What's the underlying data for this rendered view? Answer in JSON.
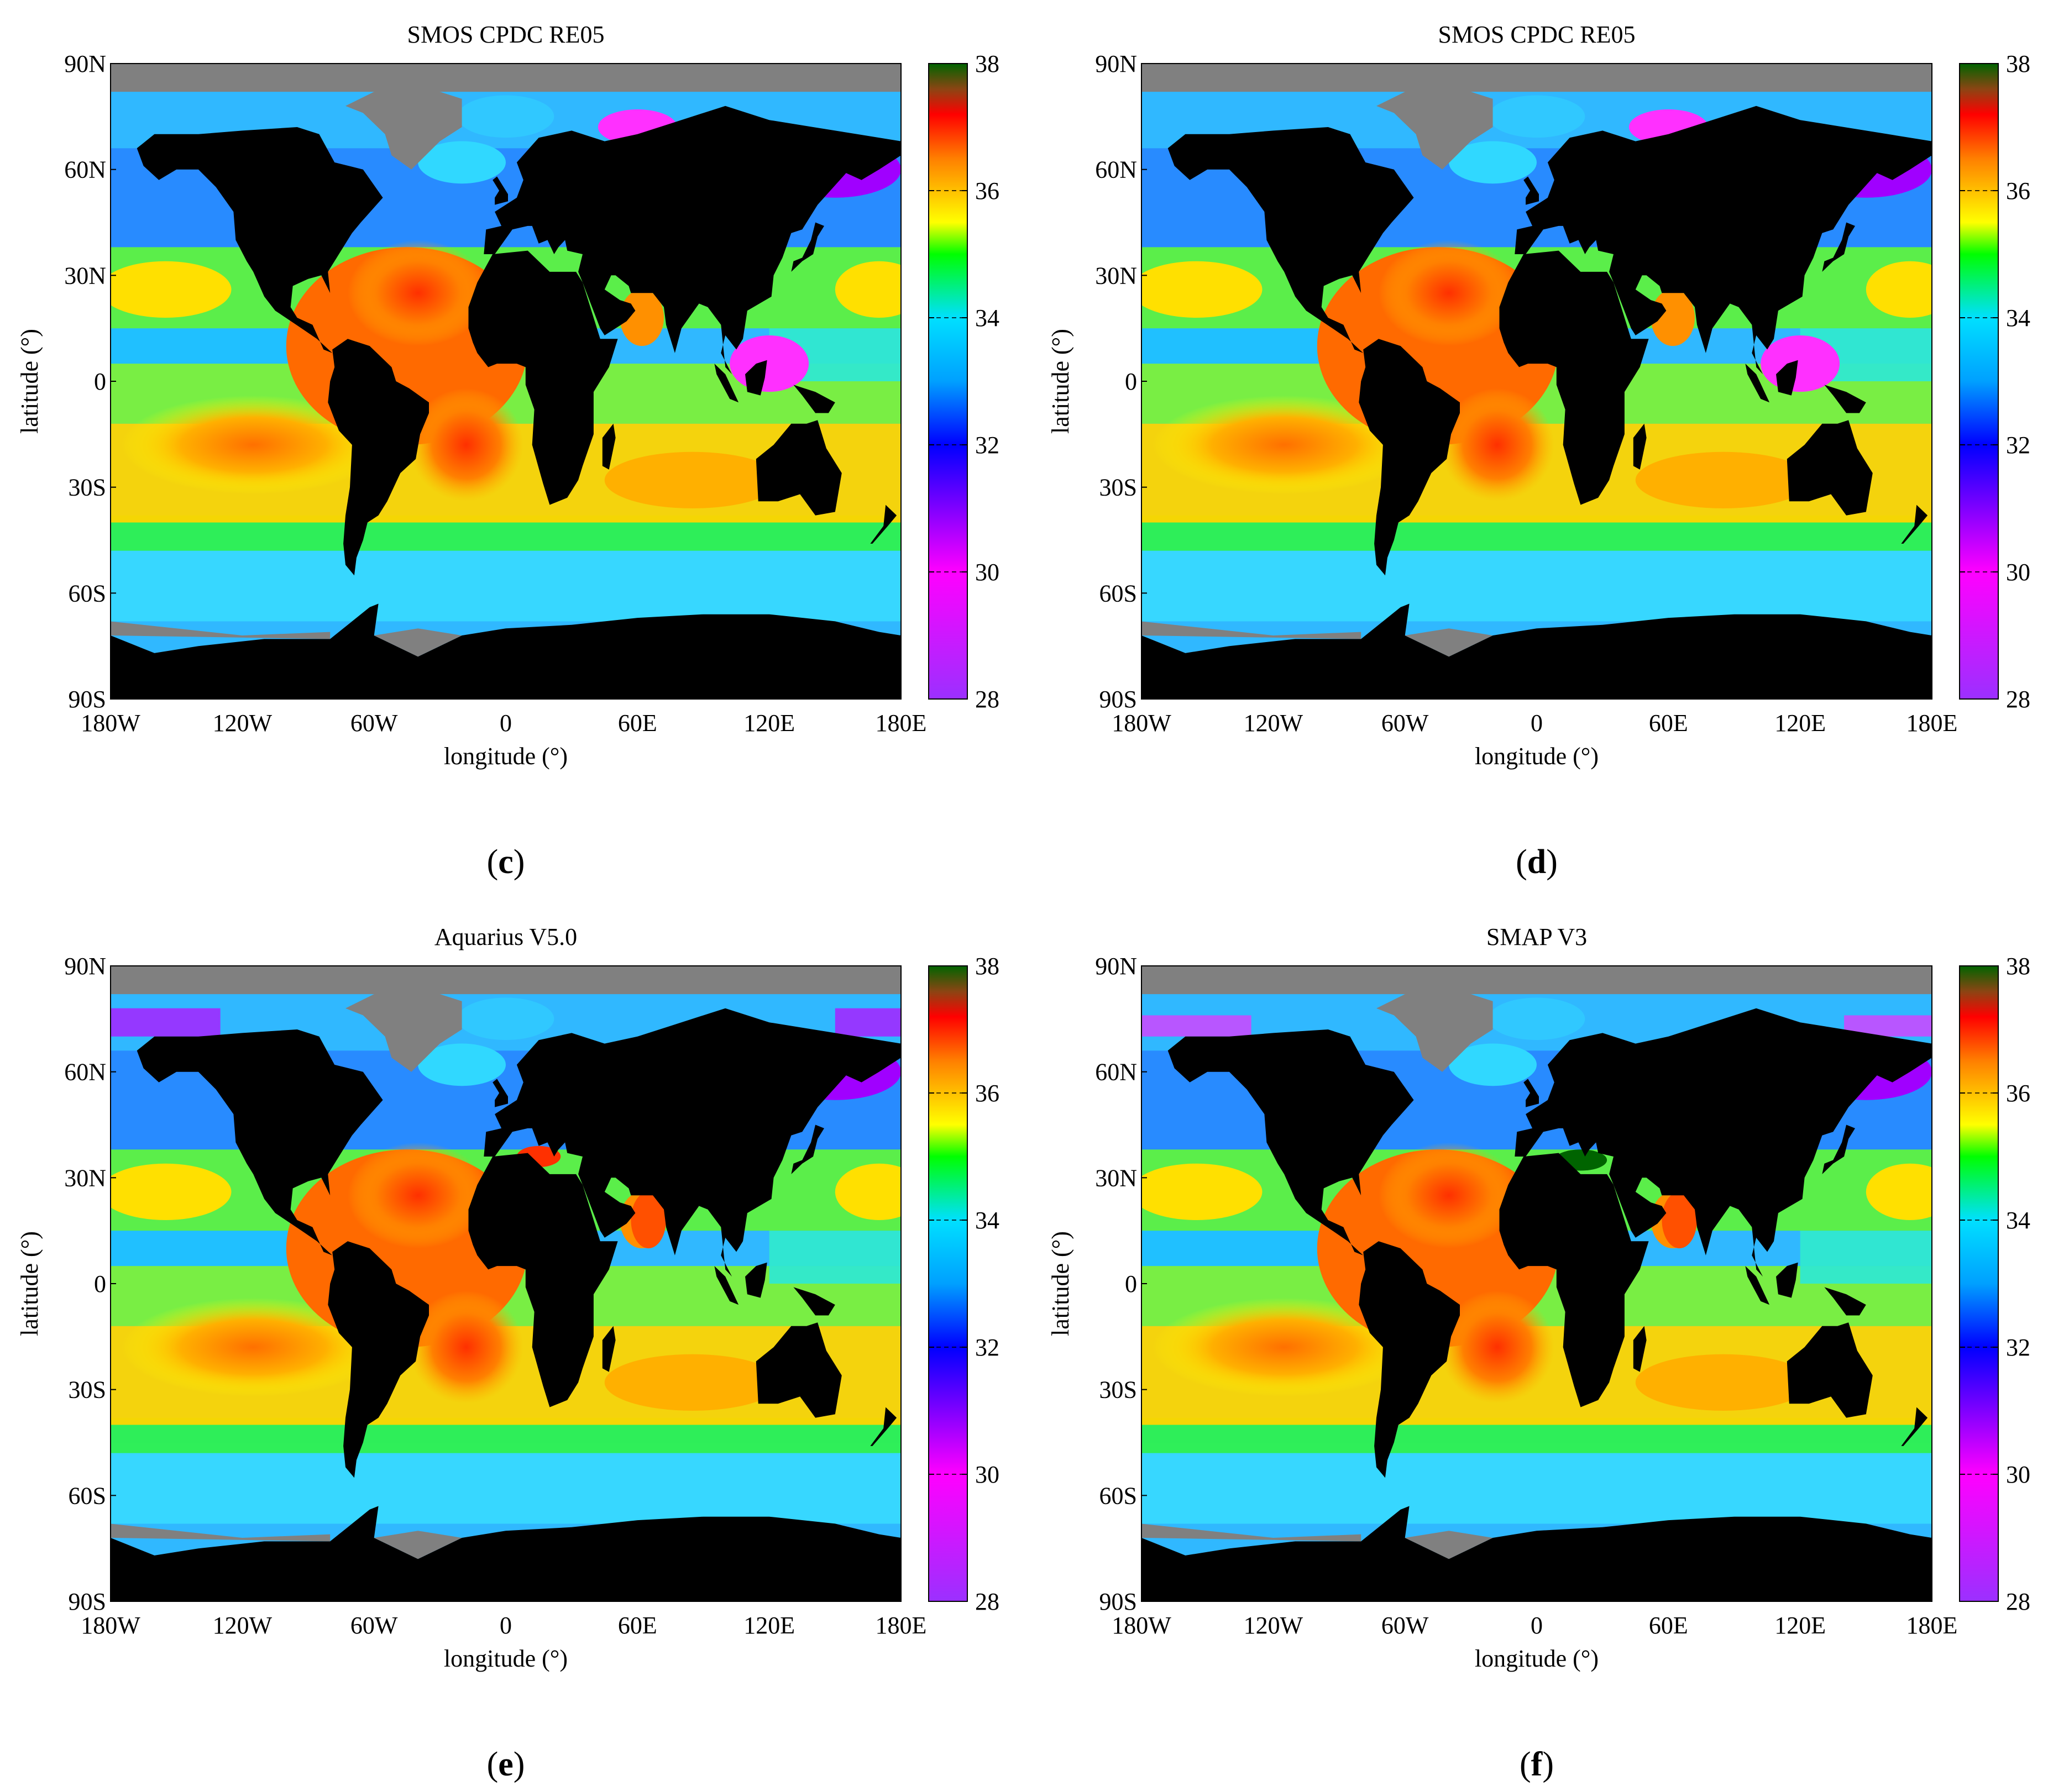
{
  "panels": [
    {
      "id": "c",
      "label_open": "(",
      "label_letter": "c",
      "label_close": ")",
      "title": "SMOS CPDC RE05",
      "variant": "smos"
    },
    {
      "id": "d",
      "label_open": "(",
      "label_letter": "d",
      "label_close": ")",
      "title": "SMOS CPDC RE05",
      "variant": "smos"
    },
    {
      "id": "e",
      "label_open": "(",
      "label_letter": "e",
      "label_close": ")",
      "title": "Aquarius V5.0",
      "variant": "aquarius"
    },
    {
      "id": "f",
      "label_open": "(",
      "label_letter": "f",
      "label_close": ")",
      "title": "SMAP V3",
      "variant": "smap"
    }
  ],
  "axes": {
    "xlabel": "longitude (°)",
    "ylabel": "latitude (°)",
    "xticks": [
      "180W",
      "120W",
      "60W",
      "0",
      "60E",
      "120E",
      "180E"
    ],
    "xtick_values": [
      -180,
      -120,
      -60,
      0,
      60,
      120,
      180
    ],
    "yticks": [
      "90N",
      "60N",
      "30N",
      "0",
      "30S",
      "60S",
      "90S"
    ],
    "ytick_values": [
      90,
      60,
      30,
      0,
      -30,
      -60,
      -90
    ]
  },
  "colorbar": {
    "ticks": [
      "38",
      "36",
      "34",
      "32",
      "30",
      "28"
    ],
    "tick_values": [
      38,
      36,
      34,
      32,
      30,
      28
    ],
    "range": [
      28,
      38
    ],
    "stops": [
      {
        "value": 28,
        "color": "#9b30ff"
      },
      {
        "value": 30,
        "color": "#ff00ff"
      },
      {
        "value": 32,
        "color": "#0000ff"
      },
      {
        "value": 33,
        "color": "#00a0ff"
      },
      {
        "value": 34,
        "color": "#00e0ff"
      },
      {
        "value": 35,
        "color": "#00ff00"
      },
      {
        "value": 35.5,
        "color": "#ffff00"
      },
      {
        "value": 36.5,
        "color": "#ff8000"
      },
      {
        "value": 37.2,
        "color": "#ff0000"
      },
      {
        "value": 37.6,
        "color": "#8b4513"
      },
      {
        "value": 38,
        "color": "#006400"
      }
    ]
  },
  "colors": {
    "land": "#000000",
    "ice": "#808080"
  }
}
